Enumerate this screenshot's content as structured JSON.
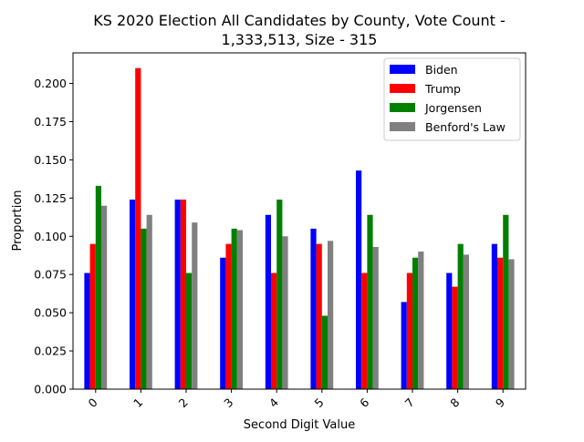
{
  "chart_data": {
    "type": "bar",
    "title_lines": [
      "KS 2020 Election All Candidates by County, Vote Count -",
      "1,333,513, Size - 315"
    ],
    "xlabel": "Second Digit Value",
    "ylabel": "Proportion",
    "categories": [
      "0",
      "1",
      "2",
      "3",
      "4",
      "5",
      "6",
      "7",
      "8",
      "9"
    ],
    "ylim": [
      0,
      0.22
    ],
    "yticks": [
      "0.000",
      "0.025",
      "0.050",
      "0.075",
      "0.100",
      "0.125",
      "0.150",
      "0.175",
      "0.200"
    ],
    "ytick_values": [
      0,
      0.025,
      0.05,
      0.075,
      0.1,
      0.125,
      0.15,
      0.175,
      0.2
    ],
    "grid": false,
    "legend_position": "top-right",
    "series": [
      {
        "name": "Biden",
        "color": "#0000ff",
        "values": [
          0.076,
          0.124,
          0.124,
          0.086,
          0.114,
          0.105,
          0.143,
          0.057,
          0.076,
          0.095
        ]
      },
      {
        "name": "Trump",
        "color": "#ff0000",
        "values": [
          0.095,
          0.21,
          0.124,
          0.095,
          0.076,
          0.095,
          0.076,
          0.076,
          0.067,
          0.086
        ]
      },
      {
        "name": "Jorgensen",
        "color": "#008000",
        "values": [
          0.133,
          0.105,
          0.076,
          0.105,
          0.124,
          0.048,
          0.114,
          0.086,
          0.095,
          0.114
        ]
      },
      {
        "name": "Benford's Law",
        "color": "#808080",
        "values": [
          0.12,
          0.114,
          0.109,
          0.104,
          0.1,
          0.097,
          0.093,
          0.09,
          0.088,
          0.085
        ]
      }
    ]
  }
}
